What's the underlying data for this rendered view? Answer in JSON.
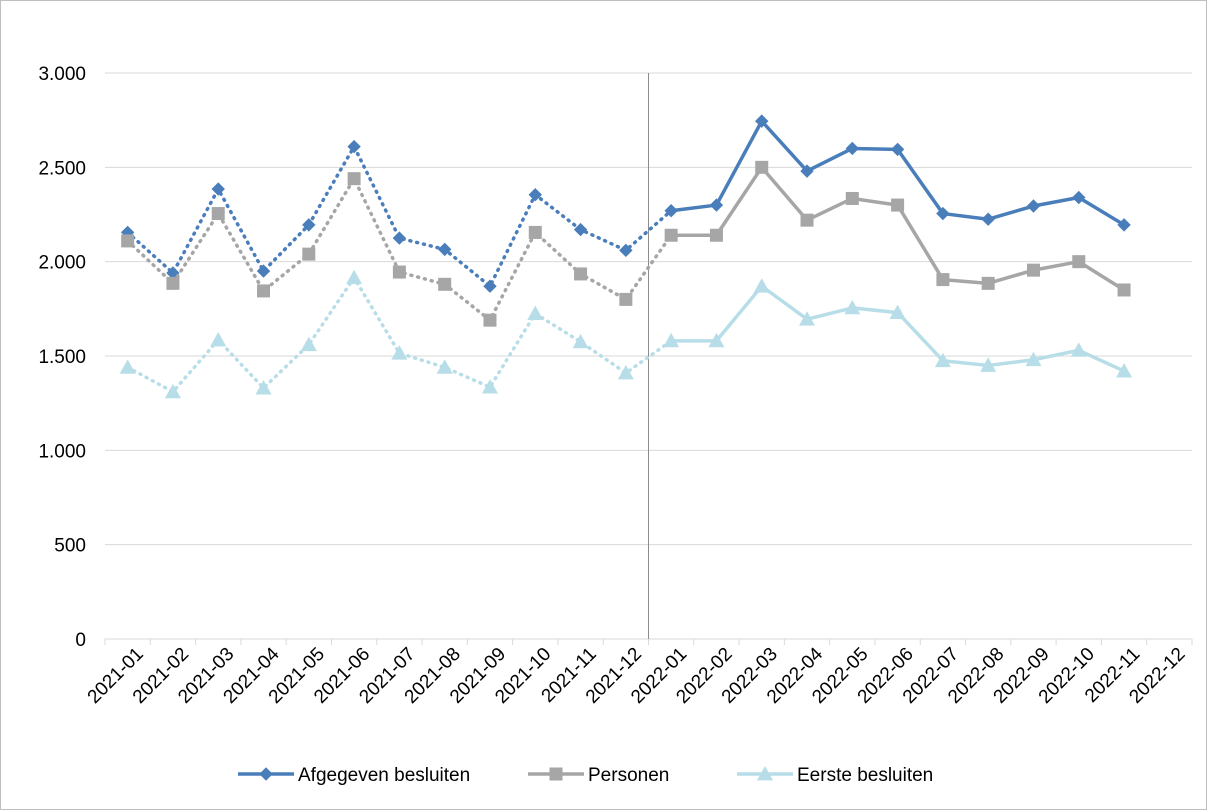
{
  "chart_data": {
    "type": "line",
    "title": "",
    "xlabel": "",
    "ylabel": "",
    "ylim": [
      0,
      3000
    ],
    "yticks": [
      0,
      500,
      1000,
      1500,
      2000,
      2500,
      3000
    ],
    "ytick_labels": [
      "0",
      "500",
      "1.000",
      "1.500",
      "2.000",
      "2.500",
      "3.000"
    ],
    "grid": true,
    "legend_position": "bottom",
    "categories": [
      "2021-01",
      "2021-02",
      "2021-03",
      "2021-04",
      "2021-05",
      "2021-06",
      "2021-07",
      "2021-08",
      "2021-09",
      "2021-10",
      "2021-11",
      "2021-12",
      "2022-01",
      "2022-02",
      "2022-03",
      "2022-04",
      "2022-05",
      "2022-06",
      "2022-07",
      "2022-08",
      "2022-09",
      "2022-10",
      "2022-11",
      "2022-12"
    ],
    "divider_after": "2021-12",
    "dotted_until": "2022-01",
    "series": [
      {
        "name": "Afgegeven besluiten",
        "color": "#4a7ebb",
        "marker": "diamond",
        "values": [
          2155,
          1940,
          2385,
          1950,
          2195,
          2610,
          2125,
          2065,
          1870,
          2355,
          2170,
          2060,
          2270,
          2300,
          2745,
          2480,
          2600,
          2595,
          2255,
          2225,
          2295,
          2340,
          2195,
          null
        ]
      },
      {
        "name": "Personen",
        "color": "#a6a6a6",
        "marker": "square",
        "values": [
          2110,
          1885,
          2255,
          1845,
          2040,
          2440,
          1945,
          1880,
          1690,
          2155,
          1935,
          1800,
          2140,
          2140,
          2500,
          2220,
          2335,
          2300,
          1905,
          1885,
          1955,
          2000,
          1850,
          null
        ]
      },
      {
        "name": "Eerste besluiten",
        "color": "#b7dee8",
        "marker": "triangle",
        "values": [
          1440,
          1310,
          1585,
          1330,
          1560,
          1915,
          1515,
          1440,
          1335,
          1725,
          1575,
          1410,
          1580,
          1580,
          1870,
          1695,
          1755,
          1730,
          1475,
          1450,
          1480,
          1530,
          1420,
          null
        ]
      }
    ]
  }
}
